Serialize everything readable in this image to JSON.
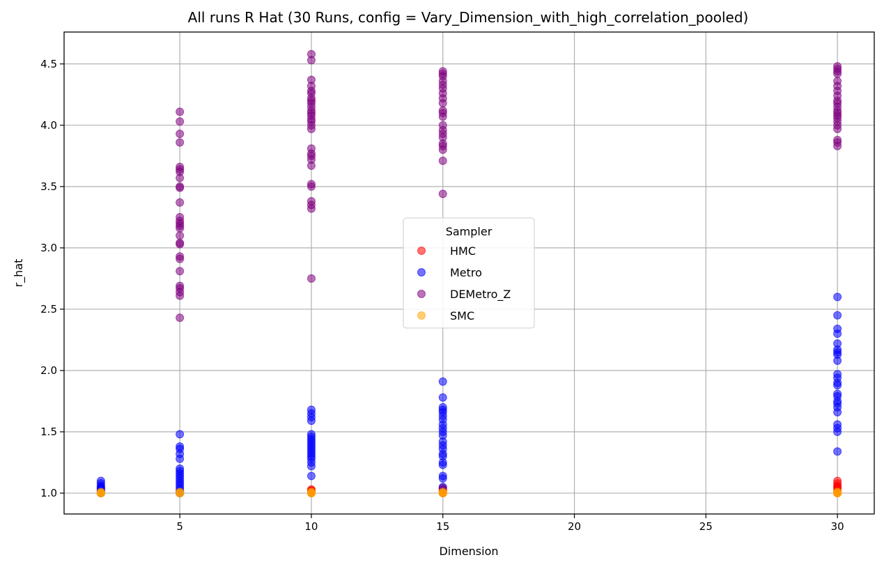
{
  "chart_data": {
    "type": "scatter",
    "title": "All runs R Hat (30 Runs, config = Vary_Dimension_with_high_correlation_pooled)",
    "xlabel": "Dimension",
    "ylabel": "r_hat",
    "xlim": [
      0.6,
      31.4
    ],
    "ylim": [
      0.83,
      4.76
    ],
    "xticks": [
      5,
      10,
      15,
      20,
      25,
      30
    ],
    "yticks": [
      1.0,
      1.5,
      2.0,
      2.5,
      3.0,
      3.5,
      4.0,
      4.5
    ],
    "grid": true,
    "legend": {
      "title": "Sampler",
      "placement": "center"
    },
    "series": [
      {
        "name": "HMC",
        "color": "#ff0000",
        "points": [
          [
            2,
            1.0
          ],
          [
            2,
            1.01
          ],
          [
            2,
            1.01
          ],
          [
            2,
            1.02
          ],
          [
            5,
            1.0
          ],
          [
            5,
            1.01
          ],
          [
            5,
            1.01
          ],
          [
            10,
            1.0
          ],
          [
            10,
            1.01
          ],
          [
            10,
            1.02
          ],
          [
            10,
            1.02
          ],
          [
            10,
            1.03
          ],
          [
            15,
            1.0
          ],
          [
            15,
            1.01
          ],
          [
            15,
            1.02
          ],
          [
            15,
            1.03
          ],
          [
            15,
            1.04
          ],
          [
            30,
            1.0
          ],
          [
            30,
            1.01
          ],
          [
            30,
            1.02
          ],
          [
            30,
            1.04
          ],
          [
            30,
            1.05
          ],
          [
            30,
            1.06
          ],
          [
            30,
            1.08
          ],
          [
            30,
            1.1
          ]
        ]
      },
      {
        "name": "Metro",
        "color": "#0000ff",
        "points": [
          [
            2,
            1.0
          ],
          [
            2,
            1.01
          ],
          [
            2,
            1.02
          ],
          [
            2,
            1.03
          ],
          [
            2,
            1.04
          ],
          [
            2,
            1.05
          ],
          [
            2,
            1.06
          ],
          [
            2,
            1.08
          ],
          [
            2,
            1.1
          ],
          [
            5,
            1.0
          ],
          [
            5,
            1.02
          ],
          [
            5,
            1.04
          ],
          [
            5,
            1.06
          ],
          [
            5,
            1.08
          ],
          [
            5,
            1.1
          ],
          [
            5,
            1.12
          ],
          [
            5,
            1.14
          ],
          [
            5,
            1.16
          ],
          [
            5,
            1.18
          ],
          [
            5,
            1.2
          ],
          [
            5,
            1.28
          ],
          [
            5,
            1.32
          ],
          [
            5,
            1.36
          ],
          [
            5,
            1.38
          ],
          [
            5,
            1.48
          ],
          [
            10,
            1.14
          ],
          [
            10,
            1.22
          ],
          [
            10,
            1.25
          ],
          [
            10,
            1.28
          ],
          [
            10,
            1.3
          ],
          [
            10,
            1.32
          ],
          [
            10,
            1.34
          ],
          [
            10,
            1.36
          ],
          [
            10,
            1.38
          ],
          [
            10,
            1.4
          ],
          [
            10,
            1.42
          ],
          [
            10,
            1.44
          ],
          [
            10,
            1.46
          ],
          [
            10,
            1.48
          ],
          [
            10,
            1.59
          ],
          [
            10,
            1.62
          ],
          [
            10,
            1.65
          ],
          [
            10,
            1.68
          ],
          [
            15,
            1.05
          ],
          [
            15,
            1.12
          ],
          [
            15,
            1.14
          ],
          [
            15,
            1.23
          ],
          [
            15,
            1.25
          ],
          [
            15,
            1.3
          ],
          [
            15,
            1.32
          ],
          [
            15,
            1.36
          ],
          [
            15,
            1.39
          ],
          [
            15,
            1.42
          ],
          [
            15,
            1.47
          ],
          [
            15,
            1.5
          ],
          [
            15,
            1.53
          ],
          [
            15,
            1.56
          ],
          [
            15,
            1.6
          ],
          [
            15,
            1.63
          ],
          [
            15,
            1.66
          ],
          [
            15,
            1.68
          ],
          [
            15,
            1.7
          ],
          [
            15,
            1.78
          ],
          [
            15,
            1.91
          ],
          [
            30,
            1.34
          ],
          [
            30,
            1.5
          ],
          [
            30,
            1.53
          ],
          [
            30,
            1.56
          ],
          [
            30,
            1.66
          ],
          [
            30,
            1.7
          ],
          [
            30,
            1.73
          ],
          [
            30,
            1.75
          ],
          [
            30,
            1.79
          ],
          [
            30,
            1.81
          ],
          [
            30,
            1.88
          ],
          [
            30,
            1.9
          ],
          [
            30,
            1.94
          ],
          [
            30,
            1.97
          ],
          [
            30,
            2.08
          ],
          [
            30,
            2.13
          ],
          [
            30,
            2.15
          ],
          [
            30,
            2.17
          ],
          [
            30,
            2.22
          ],
          [
            30,
            2.3
          ],
          [
            30,
            2.34
          ],
          [
            30,
            2.45
          ],
          [
            30,
            2.6
          ]
        ]
      },
      {
        "name": "DEMetro_Z",
        "color": "#800080",
        "points": [
          [
            5,
            2.43
          ],
          [
            5,
            2.61
          ],
          [
            5,
            2.64
          ],
          [
            5,
            2.67
          ],
          [
            5,
            2.69
          ],
          [
            5,
            2.81
          ],
          [
            5,
            2.91
          ],
          [
            5,
            2.93
          ],
          [
            5,
            3.03
          ],
          [
            5,
            3.04
          ],
          [
            5,
            3.1
          ],
          [
            5,
            3.16
          ],
          [
            5,
            3.18
          ],
          [
            5,
            3.2
          ],
          [
            5,
            3.22
          ],
          [
            5,
            3.25
          ],
          [
            5,
            3.37
          ],
          [
            5,
            3.49
          ],
          [
            5,
            3.5
          ],
          [
            5,
            3.57
          ],
          [
            5,
            3.62
          ],
          [
            5,
            3.64
          ],
          [
            5,
            3.66
          ],
          [
            5,
            3.86
          ],
          [
            5,
            3.93
          ],
          [
            5,
            4.03
          ],
          [
            5,
            4.11
          ],
          [
            10,
            2.75
          ],
          [
            10,
            3.32
          ],
          [
            10,
            3.35
          ],
          [
            10,
            3.38
          ],
          [
            10,
            3.5
          ],
          [
            10,
            3.52
          ],
          [
            10,
            3.67
          ],
          [
            10,
            3.72
          ],
          [
            10,
            3.75
          ],
          [
            10,
            3.77
          ],
          [
            10,
            3.81
          ],
          [
            10,
            3.97
          ],
          [
            10,
            4.0
          ],
          [
            10,
            4.03
          ],
          [
            10,
            4.05
          ],
          [
            10,
            4.08
          ],
          [
            10,
            4.1
          ],
          [
            10,
            4.12
          ],
          [
            10,
            4.15
          ],
          [
            10,
            4.18
          ],
          [
            10,
            4.2
          ],
          [
            10,
            4.22
          ],
          [
            10,
            4.26
          ],
          [
            10,
            4.28
          ],
          [
            10,
            4.32
          ],
          [
            10,
            4.37
          ],
          [
            10,
            4.53
          ],
          [
            10,
            4.58
          ],
          [
            15,
            3.44
          ],
          [
            15,
            3.71
          ],
          [
            15,
            3.8
          ],
          [
            15,
            3.83
          ],
          [
            15,
            3.85
          ],
          [
            15,
            3.9
          ],
          [
            15,
            3.93
          ],
          [
            15,
            3.96
          ],
          [
            15,
            4.0
          ],
          [
            15,
            4.07
          ],
          [
            15,
            4.1
          ],
          [
            15,
            4.12
          ],
          [
            15,
            4.18
          ],
          [
            15,
            4.22
          ],
          [
            15,
            4.26
          ],
          [
            15,
            4.3
          ],
          [
            15,
            4.33
          ],
          [
            15,
            4.36
          ],
          [
            15,
            4.4
          ],
          [
            15,
            4.42
          ],
          [
            15,
            4.44
          ],
          [
            30,
            3.83
          ],
          [
            30,
            3.86
          ],
          [
            30,
            3.88
          ],
          [
            30,
            3.97
          ],
          [
            30,
            4.0
          ],
          [
            30,
            4.03
          ],
          [
            30,
            4.06
          ],
          [
            30,
            4.08
          ],
          [
            30,
            4.1
          ],
          [
            30,
            4.12
          ],
          [
            30,
            4.15
          ],
          [
            30,
            4.18
          ],
          [
            30,
            4.2
          ],
          [
            30,
            4.24
          ],
          [
            30,
            4.28
          ],
          [
            30,
            4.32
          ],
          [
            30,
            4.36
          ],
          [
            30,
            4.42
          ],
          [
            30,
            4.44
          ],
          [
            30,
            4.46
          ],
          [
            30,
            4.48
          ]
        ]
      },
      {
        "name": "SMC",
        "color": "#ffa500",
        "points": [
          [
            2,
            1.0
          ],
          [
            2,
            1.0
          ],
          [
            2,
            1.01
          ],
          [
            2,
            1.0
          ],
          [
            5,
            1.0
          ],
          [
            5,
            1.0
          ],
          [
            5,
            1.01
          ],
          [
            10,
            1.0
          ],
          [
            10,
            1.0
          ],
          [
            10,
            1.01
          ],
          [
            15,
            1.0
          ],
          [
            15,
            1.0
          ],
          [
            15,
            1.01
          ],
          [
            30,
            1.0
          ],
          [
            30,
            1.0
          ],
          [
            30,
            1.01
          ]
        ]
      }
    ]
  }
}
